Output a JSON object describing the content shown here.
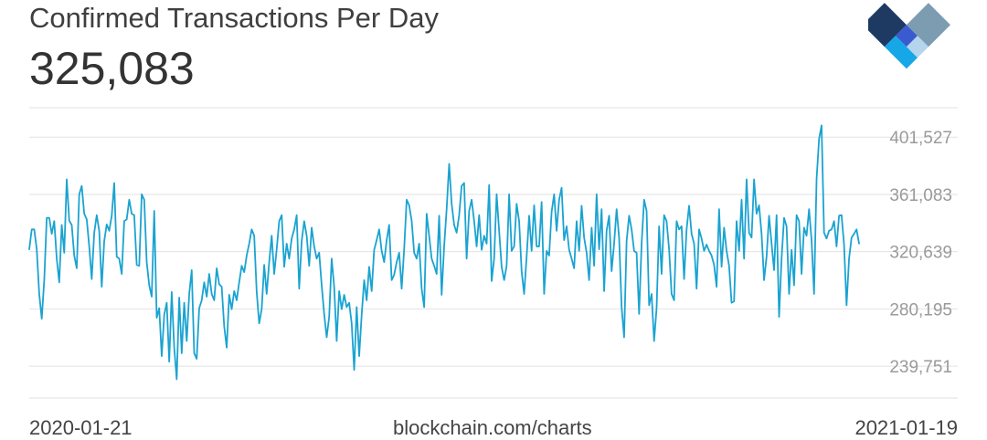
{
  "header": {
    "title": "Confirmed Transactions Per Day",
    "current_value": "325,083"
  },
  "footer": {
    "x_start": "2020-01-21",
    "x_end": "2021-01-19",
    "source": "blockchain.com/charts"
  },
  "logo": {
    "name": "blockchain-logo",
    "colors": [
      "#7c9cb1",
      "#1e3a63",
      "#3a5bd0",
      "#b5d4ee",
      "#16a7e6"
    ]
  },
  "chart_data": {
    "type": "line",
    "title": "Confirmed Transactions Per Day",
    "x_start": "2020-01-21",
    "x_end": "2021-01-19",
    "y_ticks": [
      239751,
      280195,
      320639,
      361083,
      401527
    ],
    "y_tick_labels": [
      "239,751",
      "280,195",
      "320,639",
      "361,083",
      "401,527"
    ],
    "ylim": [
      216000,
      421000
    ],
    "grid": true,
    "line_color": "#1aa3d1",
    "series": [
      {
        "values": [
          321034,
          335046,
          335046,
          321034,
          289500,
          271984,
          299233,
          343222,
          343222,
          331935,
          340887,
          314424,
          297675,
          338226,
          318583,
          370380,
          341277,
          338226,
          316576,
          307618,
          359868,
          365762,
          346117,
          342220,
          323039,
          300010,
          332735,
          345129,
          334072,
          294542,
          326854,
          338615,
          334072,
          344736,
          367837,
          315749,
          314424,
          303618,
          340887,
          342220,
          356034,
          346117,
          345129,
          310016,
          309375,
          359868,
          356034,
          311979,
          295615,
          287577,
          348111,
          272660,
          279432,
          245625,
          274682,
          283262,
          241663,
          290865,
          251579,
          229222,
          286927,
          247615,
          283262,
          256233,
          289500,
          306340,
          247615,
          243656,
          279432,
          285003,
          297675,
          287577,
          303618,
          289500,
          285003,
          307618,
          296367,
          294542,
          266624,
          251579,
          288880,
          278745,
          291524,
          285003,
          297675,
          309375,
          304917,
          316576,
          325000,
          335046,
          330620,
          290865,
          268695,
          278745,
          310016,
          289500,
          311979,
          330620,
          303618,
          321034,
          340887,
          345129,
          308688,
          325000,
          314424,
          328667,
          335046,
          345129,
          293214,
          326854,
          340887,
          330620,
          309375,
          336312,
          323039,
          314424,
          318583,
          295615,
          275399,
          258879,
          273345,
          314424,
          294542,
          256233,
          291524,
          278745,
          288880,
          280195,
          283262,
          268695,
          235808,
          280195,
          245625,
          274682,
          299233,
          285003,
          308688,
          291524,
          320639,
          327503,
          335046,
          319887,
          311979,
          327503,
          338226,
          299233,
          302966,
          311979,
          318583,
          293214,
          321034,
          356034,
          352114,
          341277,
          318583,
          314424,
          325000,
          293214,
          280195,
          346117,
          330620,
          314424,
          309375,
          303618,
          344736,
          288880,
          323039,
          349370,
          381305,
          353124,
          338226,
          332735,
          345129,
          365762,
          367837,
          314424,
          348111,
          356034,
          340887,
          323039,
          345129,
          320639,
          330620,
          325000,
          366456,
          298582,
          314424,
          359868,
          334072,
          308688,
          299233,
          309375,
          359868,
          319887,
          323039,
          353124,
          340887,
          305587,
          289500,
          315749,
          344736,
          319887,
          352114,
          323039,
          323039,
          354450,
          289500,
          319887,
          316576,
          347462,
          359868,
          334072,
          356034,
          364459,
          327503,
          337276,
          320639,
          314424,
          307618,
          340887,
          319887,
          351800,
          329292,
          318583,
          299233,
          336312,
          309375,
          359868,
          321034,
          349370,
          291524,
          334072,
          344736,
          305587,
          325000,
          349370,
          329292,
          280195,
          258879,
          326854,
          344736,
          335046,
          319887,
          318583,
          275399,
          325000,
          356034,
          348111,
          281501,
          289500,
          256233,
          279432,
          337276,
          303618,
          345129,
          340887,
          321034,
          289500,
          285003,
          340887,
          335046,
          337276,
          300010,
          335046,
          351800,
          331935,
          325000,
          293214,
          335046,
          328667,
          319887,
          324355,
          319887,
          316576,
          310016,
          294542,
          349370,
          308688,
          336312,
          319887,
          309375,
          283262,
          284292,
          340887,
          319887,
          356034,
          314424,
          370380,
          332735,
          329292,
          370380,
          346117,
          352114,
          331935,
          299233,
          315749,
          344736,
          325000,
          306340,
          345129,
          273345,
          314424,
          343222,
          337276,
          289500,
          320639,
          295615,
          345129,
          340887,
          303618,
          336312,
          330620,
          349370,
          327503,
          289500,
          370380,
          399000,
          408500,
          332735,
          328667,
          334072,
          335046,
          340887,
          323039,
          344736,
          345129,
          324355,
          281501,
          314424,
          329292,
          331935,
          335046,
          325083
        ]
      }
    ]
  }
}
